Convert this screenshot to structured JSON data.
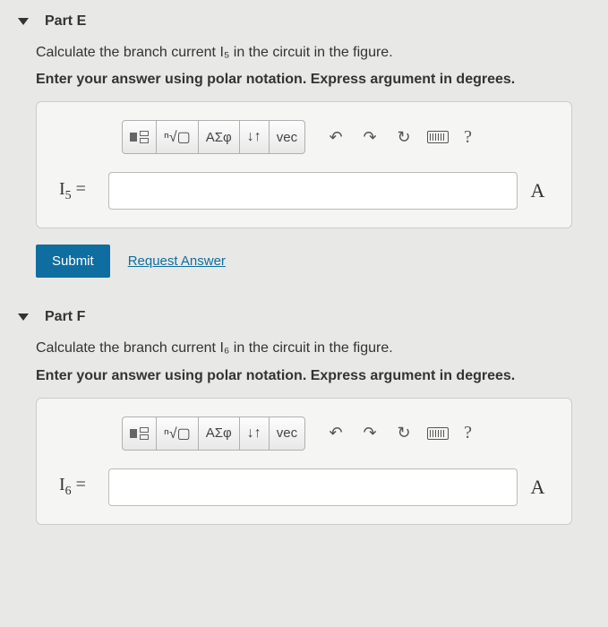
{
  "parts": {
    "E": {
      "title": "Part E",
      "question": "Calculate the branch current I₅ in the circuit in the figure.",
      "instruction": "Enter your answer using polar notation. Express argument in degrees.",
      "label_var": "I",
      "label_sub": "5",
      "equals": " =",
      "unit": "A",
      "input_value": ""
    },
    "F": {
      "title": "Part F",
      "question": "Calculate the branch current I₆ in the circuit in the figure.",
      "instruction": "Enter your answer using polar notation. Express argument in degrees.",
      "label_var": "I",
      "label_sub": "6",
      "equals": " =",
      "unit": "A",
      "input_value": ""
    }
  },
  "toolbar": {
    "greek": "ΑΣφ",
    "vec": "vec",
    "help": "?"
  },
  "actions": {
    "submit": "Submit",
    "request": "Request Answer"
  },
  "colors": {
    "background": "#e8e8e6",
    "primary": "#0f6e9f",
    "border": "#cccccc"
  }
}
